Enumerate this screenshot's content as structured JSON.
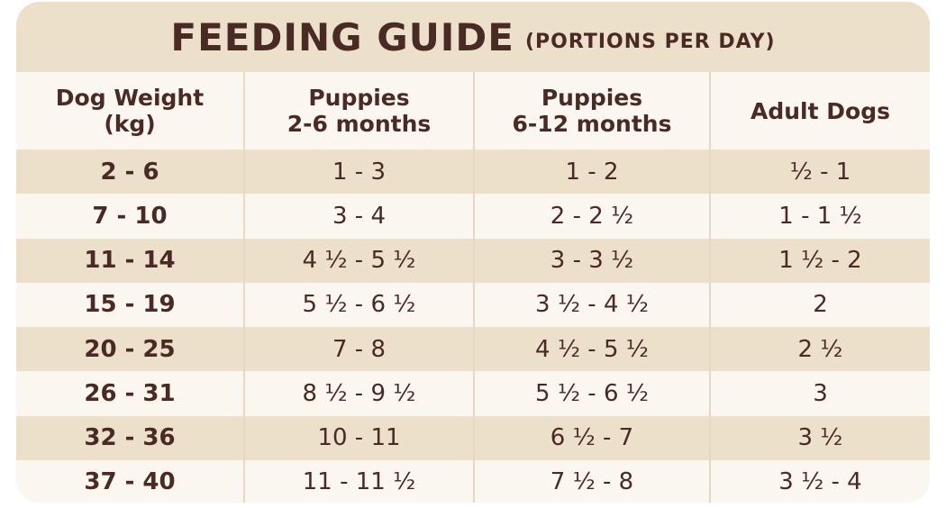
{
  "title": {
    "main": "FEEDING GUIDE",
    "sub": "(PORTIONS PER DAY)"
  },
  "headers": [
    [
      "Dog Weight",
      "(kg)"
    ],
    [
      "Puppies",
      "2-6 months"
    ],
    [
      "Puppies",
      "6-12 months"
    ],
    [
      "Adult Dogs"
    ]
  ],
  "rows": [
    [
      "2 - 6",
      "1 - 3",
      "1 - 2",
      "½ - 1"
    ],
    [
      "7 - 10",
      "3 - 4",
      "2 - 2 ½",
      "1 - 1 ½"
    ],
    [
      "11 - 14",
      "4 ½ - 5 ½",
      "3 - 3 ½",
      "1 ½ - 2"
    ],
    [
      "15 - 19",
      "5 ½ - 6 ½",
      "3 ½ - 4 ½",
      "2"
    ],
    [
      "20 - 25",
      "7 - 8",
      "4 ½ - 5 ½",
      "2 ½"
    ],
    [
      "26 - 31",
      "8 ½ - 9 ½",
      "5 ½ - 6 ½",
      "3"
    ],
    [
      "32 - 36",
      "10 - 11",
      "6 ½ - 7",
      "3 ½"
    ],
    [
      "37 - 40",
      "11 - 11 ½",
      "7 ½ - 8",
      "3 ½ - 4"
    ]
  ]
}
